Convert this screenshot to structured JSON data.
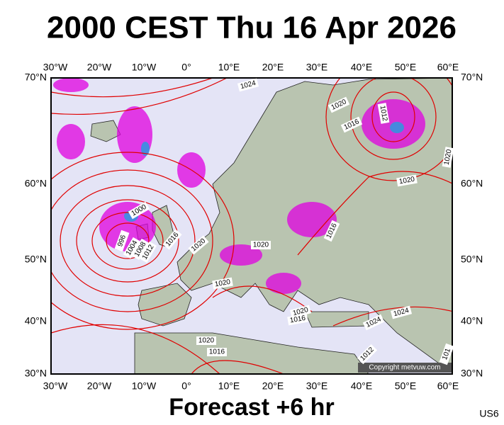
{
  "header": {
    "title": "2000 CEST Thu 16 Apr 2026"
  },
  "axes": {
    "longitudes": [
      "30°W",
      "20°W",
      "10°W",
      "0°",
      "10°E",
      "20°E",
      "30°E",
      "40°E",
      "50°E",
      "60°E"
    ],
    "latitudes": [
      "70°N",
      "60°N",
      "50°N",
      "40°N",
      "30°N"
    ]
  },
  "isobar_labels": [
    "1024",
    "1020",
    "1016",
    "1012",
    "1020",
    "1020",
    "1000",
    "996",
    "1004",
    "1008",
    "1012",
    "1016",
    "1020",
    "1020",
    "1016",
    "1020",
    "1020",
    "1016",
    "1024",
    "1024",
    "1020",
    "1016",
    "1012",
    "101"
  ],
  "copyright": "Copyright metvuw.com",
  "footer": {
    "forecast": "Forecast +6 hr",
    "code": "US6"
  }
}
